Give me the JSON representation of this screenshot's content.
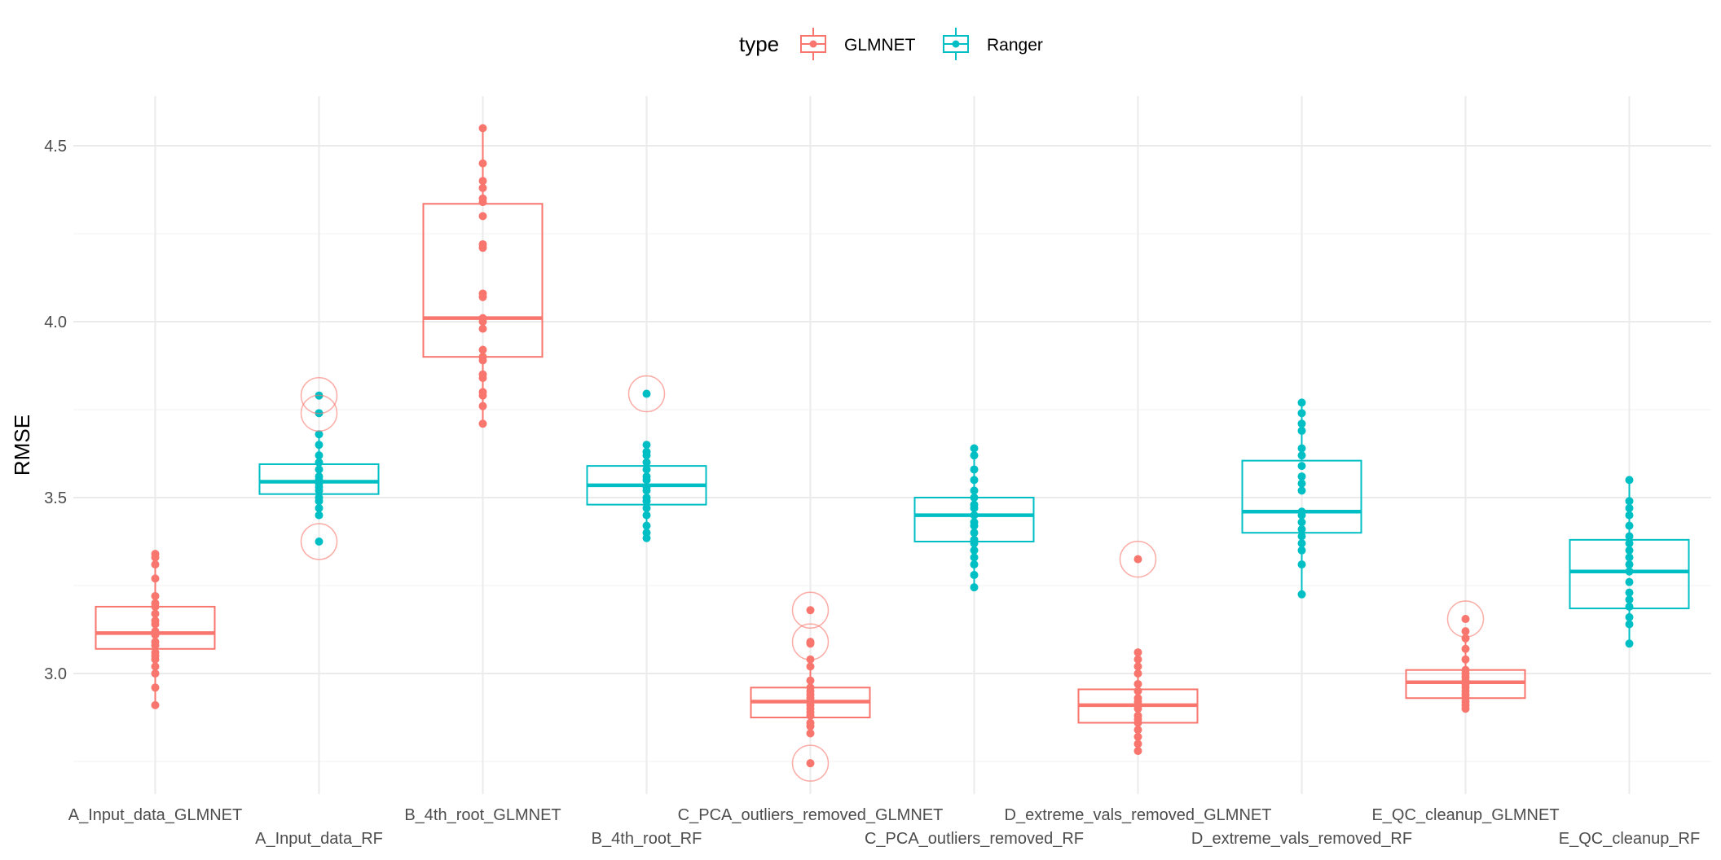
{
  "chart_data": {
    "type": "box",
    "ylabel": "RMSE",
    "xlabel": "",
    "ylim": [
      2.7,
      4.65
    ],
    "yticks": [
      3.0,
      3.5,
      4.0,
      4.5
    ],
    "ytick_labels": [
      "3.0",
      "3.5",
      "4.0",
      "4.5"
    ],
    "legend": {
      "title": "type",
      "position": "top",
      "entries": [
        {
          "label": "GLMNET",
          "color": "#F8766D"
        },
        {
          "label": "Ranger",
          "color": "#00BFC4"
        }
      ]
    },
    "categories": [
      "A_Input_data_GLMNET",
      "A_Input_data_RF",
      "B_4th_root_GLMNET",
      "B_4th_root_RF",
      "C_PCA_outliers_removed_GLMNET",
      "C_PCA_outliers_removed_RF",
      "D_extreme_vals_removed_GLMNET",
      "D_extreme_vals_removed_RF",
      "E_QC_cleanup_GLMNET",
      "E_QC_cleanup_RF"
    ],
    "boxes": [
      {
        "category": "A_Input_data_GLMNET",
        "type": "GLMNET",
        "q1": 3.07,
        "median": 3.115,
        "q3": 3.19,
        "whisker_low": 2.91,
        "whisker_high": 3.34,
        "points": [
          2.91,
          2.96,
          3.0,
          3.02,
          3.04,
          3.05,
          3.06,
          3.08,
          3.09,
          3.11,
          3.12,
          3.14,
          3.15,
          3.17,
          3.19,
          3.2,
          3.22,
          3.27,
          3.31,
          3.33,
          3.34
        ],
        "outliers": []
      },
      {
        "category": "A_Input_data_RF",
        "type": "Ranger",
        "q1": 3.51,
        "median": 3.545,
        "q3": 3.595,
        "whisker_low": 3.45,
        "whisker_high": 3.68,
        "points": [
          3.375,
          3.45,
          3.47,
          3.49,
          3.5,
          3.52,
          3.53,
          3.54,
          3.55,
          3.56,
          3.58,
          3.6,
          3.62,
          3.65,
          3.68,
          3.74,
          3.79
        ],
        "outliers": [
          3.375,
          3.74,
          3.79
        ]
      },
      {
        "category": "B_4th_root_GLMNET",
        "type": "GLMNET",
        "q1": 3.9,
        "median": 4.01,
        "q3": 4.335,
        "whisker_low": 3.71,
        "whisker_high": 4.55,
        "points": [
          3.71,
          3.76,
          3.79,
          3.8,
          3.84,
          3.85,
          3.89,
          3.9,
          3.92,
          3.98,
          4.0,
          4.01,
          4.07,
          4.08,
          4.21,
          4.22,
          4.3,
          4.34,
          4.35,
          4.38,
          4.4,
          4.45,
          4.55
        ],
        "outliers": []
      },
      {
        "category": "B_4th_root_RF",
        "type": "Ranger",
        "q1": 3.48,
        "median": 3.535,
        "q3": 3.59,
        "whisker_low": 3.385,
        "whisker_high": 3.65,
        "points": [
          3.385,
          3.4,
          3.42,
          3.45,
          3.47,
          3.49,
          3.5,
          3.52,
          3.53,
          3.55,
          3.56,
          3.58,
          3.6,
          3.62,
          3.63,
          3.65,
          3.795
        ],
        "outliers": [
          3.795
        ]
      },
      {
        "category": "C_PCA_outliers_removed_GLMNET",
        "type": "GLMNET",
        "q1": 2.875,
        "median": 2.92,
        "q3": 2.96,
        "whisker_low": 2.83,
        "whisker_high": 3.04,
        "points": [
          2.745,
          2.83,
          2.85,
          2.86,
          2.88,
          2.89,
          2.9,
          2.91,
          2.92,
          2.93,
          2.94,
          2.95,
          2.96,
          2.98,
          3.02,
          3.04,
          3.085,
          3.09,
          3.18
        ],
        "outliers": [
          2.745,
          3.09,
          3.18
        ]
      },
      {
        "category": "C_PCA_outliers_removed_RF",
        "type": "Ranger",
        "q1": 3.375,
        "median": 3.45,
        "q3": 3.5,
        "whisker_low": 3.245,
        "whisker_high": 3.64,
        "points": [
          3.245,
          3.28,
          3.31,
          3.33,
          3.35,
          3.37,
          3.38,
          3.4,
          3.42,
          3.43,
          3.45,
          3.47,
          3.48,
          3.5,
          3.52,
          3.55,
          3.58,
          3.62,
          3.64
        ],
        "outliers": []
      },
      {
        "category": "D_extreme_vals_removed_GLMNET",
        "type": "GLMNET",
        "q1": 2.86,
        "median": 2.91,
        "q3": 2.955,
        "whisker_low": 2.78,
        "whisker_high": 3.06,
        "points": [
          2.78,
          2.8,
          2.82,
          2.84,
          2.86,
          2.87,
          2.88,
          2.9,
          2.91,
          2.92,
          2.93,
          2.95,
          2.97,
          3.0,
          3.02,
          3.04,
          3.06,
          3.325
        ],
        "outliers": [
          3.325
        ]
      },
      {
        "category": "D_extreme_vals_removed_RF",
        "type": "Ranger",
        "q1": 3.4,
        "median": 3.46,
        "q3": 3.605,
        "whisker_low": 3.225,
        "whisker_high": 3.77,
        "points": [
          3.225,
          3.31,
          3.35,
          3.37,
          3.39,
          3.41,
          3.43,
          3.45,
          3.46,
          3.52,
          3.54,
          3.56,
          3.59,
          3.62,
          3.64,
          3.69,
          3.71,
          3.74,
          3.77
        ],
        "outliers": []
      },
      {
        "category": "E_QC_cleanup_GLMNET",
        "type": "GLMNET",
        "q1": 2.93,
        "median": 2.975,
        "q3": 3.01,
        "whisker_low": 2.9,
        "whisker_high": 3.12,
        "points": [
          2.9,
          2.91,
          2.92,
          2.93,
          2.94,
          2.95,
          2.96,
          2.97,
          2.98,
          2.99,
          3.0,
          3.01,
          3.04,
          3.07,
          3.1,
          3.12,
          3.155
        ],
        "outliers": [
          3.155
        ]
      },
      {
        "category": "E_QC_cleanup_RF",
        "type": "Ranger",
        "q1": 3.185,
        "median": 3.29,
        "q3": 3.38,
        "whisker_low": 3.085,
        "whisker_high": 3.55,
        "points": [
          3.085,
          3.14,
          3.16,
          3.19,
          3.21,
          3.23,
          3.26,
          3.29,
          3.31,
          3.33,
          3.35,
          3.37,
          3.39,
          3.42,
          3.45,
          3.47,
          3.49,
          3.55
        ],
        "outliers": []
      }
    ],
    "grid": true,
    "colors": {
      "GLMNET": "#F8766D",
      "Ranger": "#00BFC4",
      "grid": "#ebebeb"
    }
  }
}
